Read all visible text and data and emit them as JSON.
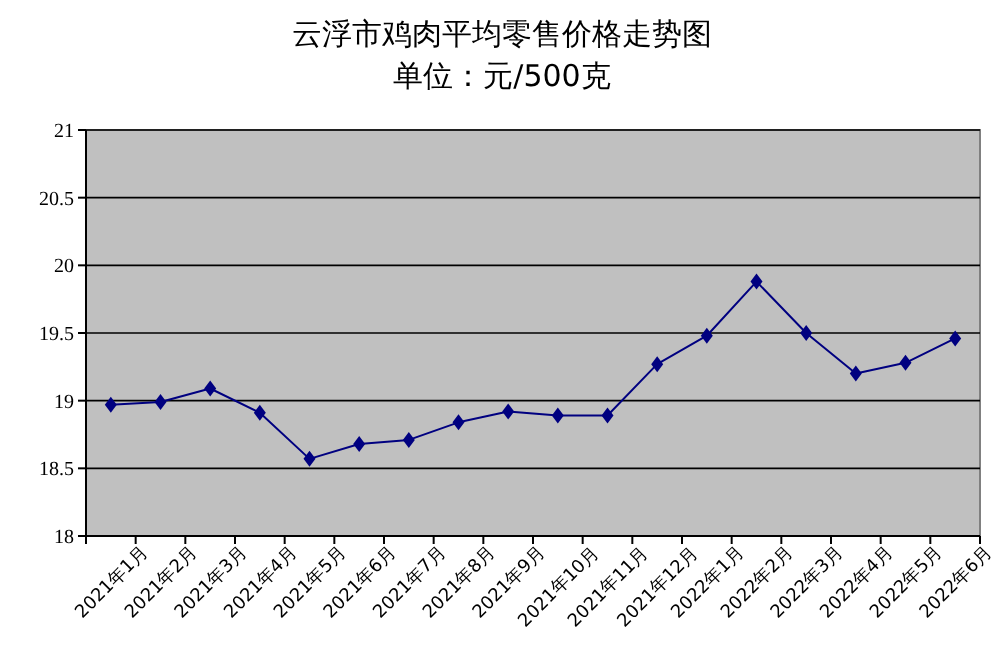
{
  "chart_data": {
    "type": "line",
    "title": "云浮市鸡肉平均零售价格走势图",
    "subtitle": "单位：元/500克",
    "categories": [
      "2021年1月",
      "2021年2月",
      "2021年3月",
      "2021年4月",
      "2021年5月",
      "2021年6月",
      "2021年7月",
      "2021年8月",
      "2021年9月",
      "2021年10月",
      "2021年11月",
      "2021年12月",
      "2022年1月",
      "2022年2月",
      "2022年3月",
      "2022年4月",
      "2022年5月",
      "2022年6月"
    ],
    "series": [
      {
        "color": "#000080",
        "values": [
          18.97,
          18.99,
          19.09,
          18.91,
          18.57,
          18.68,
          18.71,
          18.84,
          18.92,
          18.89,
          18.89,
          19.27,
          19.48,
          19.88,
          19.5,
          19.2,
          19.28,
          19.46
        ]
      }
    ],
    "ylim": [
      18,
      21
    ],
    "yticks": [
      18,
      18.5,
      19,
      19.5,
      20,
      20.5,
      21
    ],
    "grid": "y",
    "marker": "diamond"
  }
}
